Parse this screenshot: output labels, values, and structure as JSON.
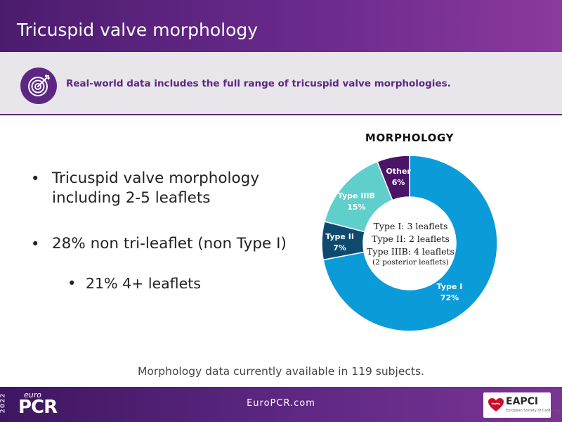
{
  "header": {
    "title": "Tricuspid valve morphology"
  },
  "banner": {
    "icon": "target-icon",
    "text": "Real-world data includes the full range of tricuspid valve morphologies."
  },
  "bullets": [
    "Tricuspid valve morphology including 2-5 leaflets",
    "28% non tri-leaflet (non Type I)",
    "21% 4+ leaflets"
  ],
  "chart_data": {
    "type": "pie",
    "title": "MORPHOLOGY",
    "donut": true,
    "categories": [
      "Type I",
      "Type II",
      "Type IIIB",
      "Other"
    ],
    "values": [
      72,
      7,
      15,
      6
    ],
    "value_labels": [
      "72%",
      "7%",
      "15%",
      "6%"
    ],
    "colors": [
      "#0b9bd9",
      "#0e4a6e",
      "#5fcfcb",
      "#4a1566"
    ],
    "center_lines": [
      "Type I: 3 leaflets",
      "Type II: 2 leaflets",
      "Type IIIB: 4 leaflets",
      "(2 posterior leaflets)"
    ]
  },
  "footnote": "Morphology data currently available in 119 subjects.",
  "footer": {
    "logo_year": "2022",
    "logo_euro": "euro",
    "logo_pcr": "PCR",
    "url": "EuroPCR.com",
    "eapci": "EAPCI",
    "eapci_sub": "European Society of Cardiology"
  }
}
